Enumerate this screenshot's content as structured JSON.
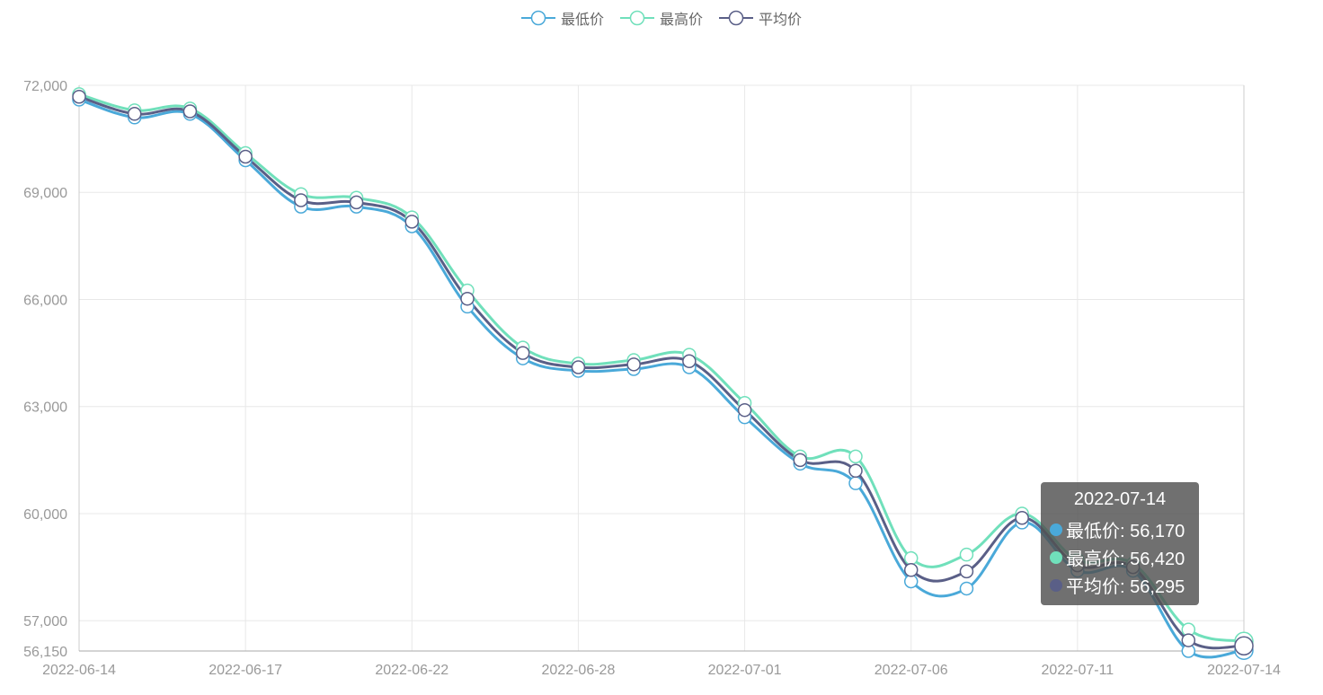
{
  "chart_data": {
    "type": "line",
    "smooth": true,
    "x": [
      "2022-06-14",
      "2022-06-15",
      "2022-06-16",
      "2022-06-17",
      "2022-06-20",
      "2022-06-21",
      "2022-06-22",
      "2022-06-23",
      "2022-06-24",
      "2022-06-28",
      "2022-06-29",
      "2022-06-30",
      "2022-07-01",
      "2022-07-04",
      "2022-07-05",
      "2022-07-06",
      "2022-07-07",
      "2022-07-08",
      "2022-07-11",
      "2022-07-12",
      "2022-07-13",
      "2022-07-14"
    ],
    "x_tick_labels": [
      "2022-06-14",
      "2022-06-17",
      "2022-06-22",
      "2022-06-28",
      "2022-07-01",
      "2022-07-06",
      "2022-07-11",
      "2022-07-14"
    ],
    "ylim": [
      56150,
      72000
    ],
    "y_ticks": [
      56150,
      57000,
      60000,
      63000,
      66000,
      69000,
      72000
    ],
    "y_tick_labels": [
      "56,150",
      "57,000",
      "60,000",
      "63,000",
      "66,000",
      "69,000",
      "72,000"
    ],
    "series": [
      {
        "name": "最低价",
        "color": "#4aa9d9",
        "values": [
          71600,
          71100,
          71200,
          69900,
          68600,
          68600,
          68050,
          65800,
          64350,
          64000,
          64050,
          64100,
          62700,
          61400,
          60850,
          58100,
          57900,
          59750,
          58400,
          58400,
          56150,
          56170
        ]
      },
      {
        "name": "最高价",
        "color": "#70e0bb",
        "values": [
          71750,
          71300,
          71350,
          70100,
          68950,
          68850,
          68300,
          66250,
          64650,
          64200,
          64300,
          64450,
          63100,
          61600,
          61600,
          58750,
          58850,
          60000,
          58700,
          58600,
          56750,
          56420
        ]
      },
      {
        "name": "平均价",
        "color": "#5a5f87",
        "values": [
          71680,
          71200,
          71270,
          70000,
          68780,
          68720,
          68180,
          66020,
          64500,
          64100,
          64180,
          64270,
          62900,
          61500,
          61200,
          58420,
          58380,
          59880,
          58550,
          58500,
          56450,
          56295
        ]
      }
    ],
    "grid": true,
    "legend_position": "top-center"
  },
  "tooltip": {
    "date": "2022-07-14",
    "rows": [
      {
        "label": "最低价: 56,170",
        "color": "#4aa9d9"
      },
      {
        "label": "最高价: 56,420",
        "color": "#70e0bb"
      },
      {
        "label": "平均价: 56,295",
        "color": "#5a5f87"
      }
    ]
  }
}
